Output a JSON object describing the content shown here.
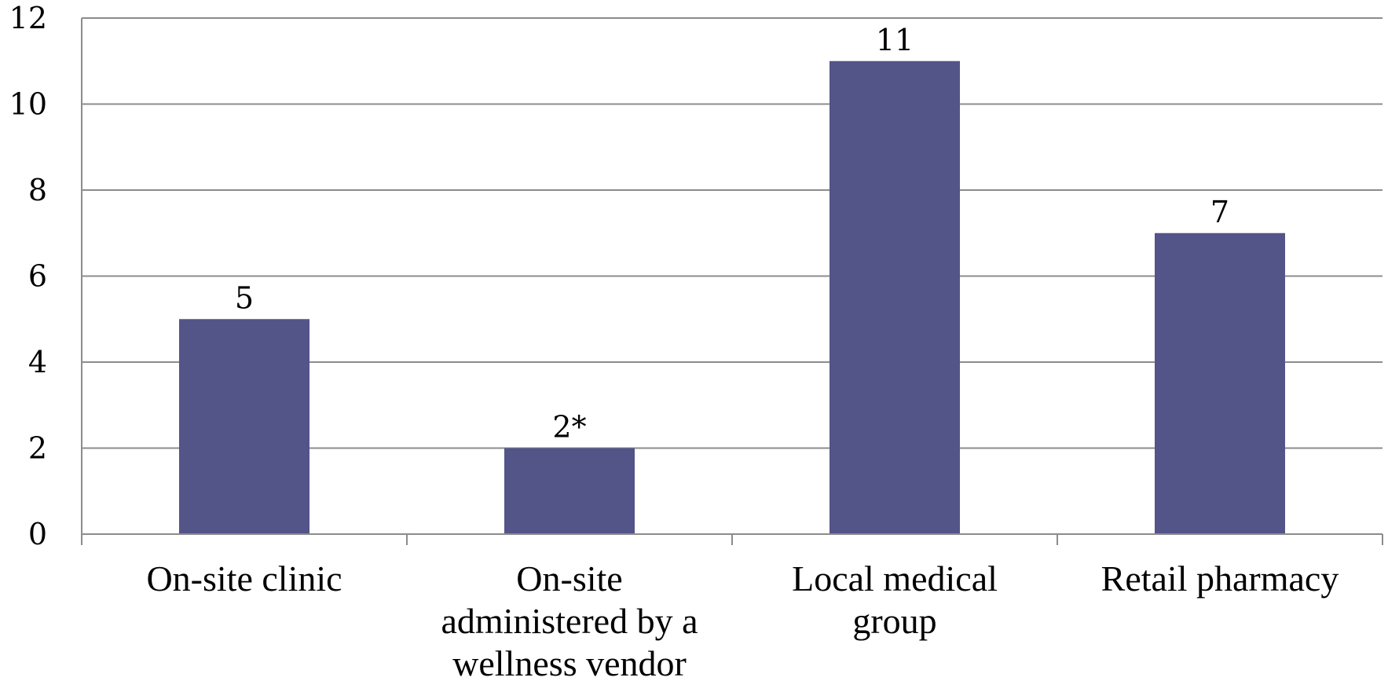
{
  "chart_data": {
    "type": "bar",
    "title": "",
    "xlabel": "",
    "ylabel": "",
    "categories": [
      [
        "On-site clinic"
      ],
      [
        "On-site",
        "administered by a",
        "wellness vendor"
      ],
      [
        "Local medical",
        "group"
      ],
      [
        "Retail pharmacy"
      ]
    ],
    "values": [
      5,
      2,
      11,
      7
    ],
    "data_labels": [
      "5",
      "2*",
      "11",
      "7"
    ],
    "ylim": [
      0,
      12
    ],
    "yticks": [
      "0",
      "2",
      "4",
      "6",
      "8",
      "10",
      "12"
    ],
    "ytick_values": [
      0,
      2,
      4,
      6,
      8,
      10,
      12
    ],
    "grid": true,
    "legend": "none",
    "colors": {
      "bar": "#535488",
      "grid": "#8c8c8c"
    }
  }
}
